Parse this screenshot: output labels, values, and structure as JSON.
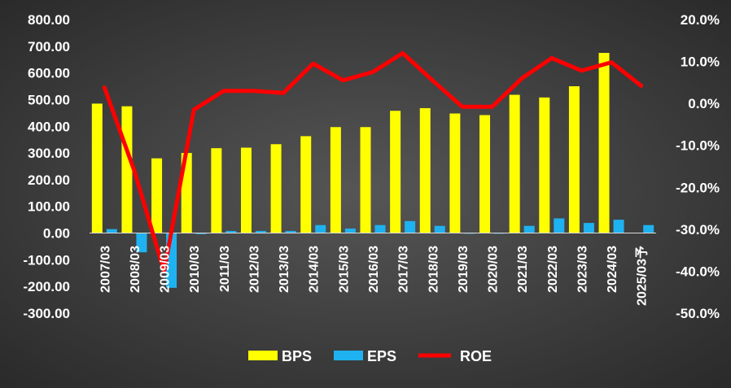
{
  "chart_data": {
    "type": "bar",
    "categories": [
      "2007/03",
      "2008/03",
      "2009/03",
      "2010/03",
      "2011/03",
      "2012/03",
      "2013/03",
      "2014/03",
      "2015/03",
      "2016/03",
      "2017/03",
      "2018/03",
      "2019/03",
      "2020/03",
      "2021/03",
      "2022/03",
      "2023/03",
      "2024/03",
      "2025/03予"
    ],
    "series": [
      {
        "name": "BPS",
        "kind": "bar",
        "axis": "left",
        "color": "#ffff00",
        "values": [
          485,
          475,
          280,
          300,
          318,
          320,
          333,
          363,
          397,
          397,
          458,
          468,
          448,
          442,
          518,
          508,
          550,
          675,
          null
        ]
      },
      {
        "name": "EPS",
        "kind": "bar",
        "axis": "left",
        "color": "#1fb2f0",
        "values": [
          15,
          -72,
          -205,
          -4,
          8,
          8,
          8,
          30,
          17,
          30,
          45,
          27,
          -2,
          -2,
          27,
          55,
          38,
          50,
          30
        ]
      },
      {
        "name": "ROE",
        "kind": "line",
        "axis": "right",
        "color": "#ff0000",
        "values": [
          3.8,
          -16.0,
          -40.0,
          -1.5,
          3.0,
          3.0,
          2.5,
          9.5,
          5.5,
          7.5,
          12.0,
          5.5,
          -0.8,
          -0.8,
          6.0,
          10.8,
          7.8,
          9.8,
          4.2
        ]
      }
    ],
    "y_left": {
      "ylim": [
        -300,
        800
      ],
      "ticks": [
        800,
        700,
        600,
        500,
        400,
        300,
        200,
        100,
        0,
        -100,
        -200,
        -300
      ],
      "tick_labels": [
        "800.00",
        "700.00",
        "600.00",
        "500.00",
        "400.00",
        "300.00",
        "200.00",
        "100.00",
        "0.00",
        "-100.00",
        "-200.00",
        "-300.00"
      ]
    },
    "y_right": {
      "ylim": [
        -50,
        20
      ],
      "ticks": [
        20,
        10,
        0,
        -10,
        -20,
        -30,
        -40,
        -50
      ],
      "tick_labels": [
        "20.0%",
        "10.0%",
        "0.0%",
        "-10.0%",
        "-20.0%",
        "-30.0%",
        "-40.0%",
        "-50.0%"
      ]
    },
    "legend": {
      "position": "bottom",
      "items": [
        {
          "label": "BPS",
          "color": "#ffff00",
          "marker": "rect"
        },
        {
          "label": "EPS",
          "color": "#1fb2f0",
          "marker": "rect"
        },
        {
          "label": "ROE",
          "color": "#ff0000",
          "marker": "line"
        }
      ]
    },
    "grid": false
  }
}
